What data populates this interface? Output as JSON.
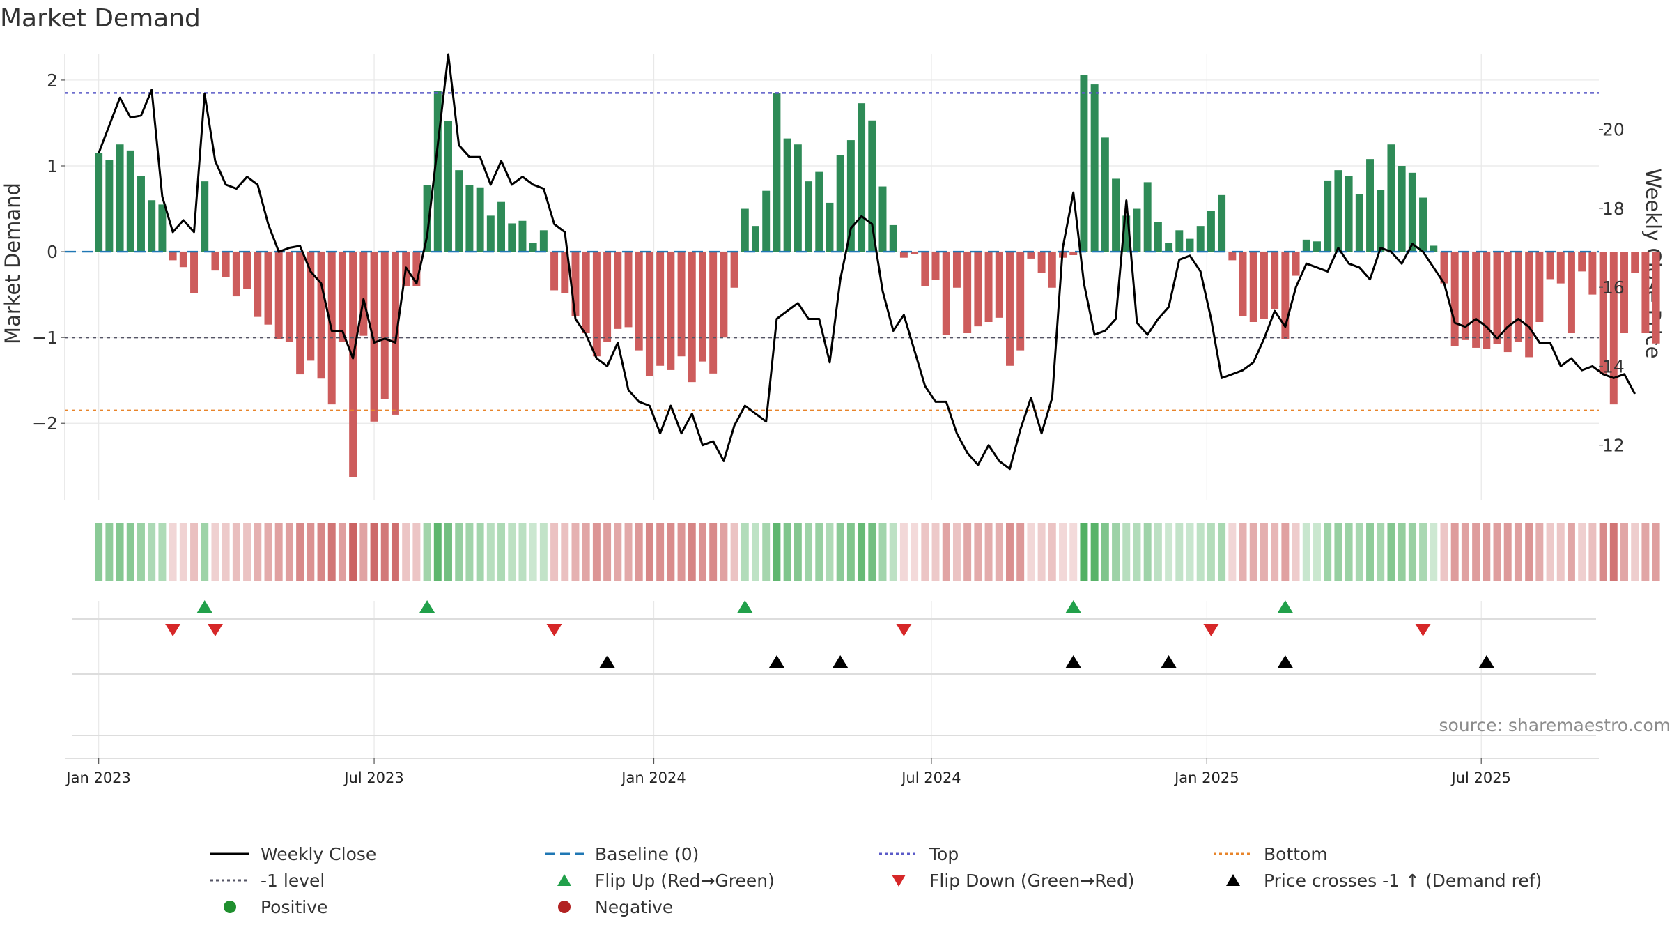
{
  "colors": {
    "positive_bar": "#2e8b57",
    "negative_bar": "#cd5c5c",
    "close_line": "#000000",
    "baseline": "#1f77b4",
    "top": "#5a5ac8",
    "bottom": "#e8842a",
    "minus_one": "#555566",
    "flip_up": "#21a04a",
    "flip_down": "#d62728",
    "cross": "#000000",
    "positive_dot": "#1f8f2e",
    "negative_dot": "#b22222",
    "grid": "#e8e8e8",
    "source": "#8c8c8c"
  },
  "source_text": "source: sharemaestro.com",
  "legend": [
    {
      "label": "Weekly Close",
      "kind": "line-black"
    },
    {
      "label": "Baseline (0)",
      "kind": "dash-blue"
    },
    {
      "label": "Top",
      "kind": "dot-purple"
    },
    {
      "label": "Bottom",
      "kind": "dot-orange"
    },
    {
      "label": "-1 level",
      "kind": "dot-gray"
    },
    {
      "label": "Flip Up (Red→Green)",
      "kind": "tri-up-green"
    },
    {
      "label": "Flip Down (Green→Red)",
      "kind": "tri-down-red"
    },
    {
      "label": "Price crosses -1 ↑ (Demand ref)",
      "kind": "tri-up-black"
    },
    {
      "label": "Positive",
      "kind": "dot-green"
    },
    {
      "label": "Negative",
      "kind": "dot-red"
    }
  ],
  "chart_data": {
    "type": "bar",
    "title": "Market Demand",
    "ylabel": "Market Demand",
    "y2label": "Weekly Close Price",
    "ylim": [
      -2.9,
      2.3
    ],
    "y2lim": [
      10.6,
      21.9
    ],
    "yticks": [
      {
        "value": 2,
        "label": "2"
      },
      {
        "value": 1,
        "label": "1"
      },
      {
        "value": 0,
        "label": "0"
      },
      {
        "value": -1,
        "label": "−1"
      },
      {
        "value": -2,
        "label": "−2"
      }
    ],
    "y2ticks": [
      {
        "value": 20,
        "label": "20"
      },
      {
        "value": 18,
        "label": "18"
      },
      {
        "value": 16,
        "label": "16"
      },
      {
        "value": 14,
        "label": "14"
      },
      {
        "value": 12,
        "label": "12"
      }
    ],
    "xlim": [
      -3.2,
      141.6
    ],
    "xticks": [
      {
        "value": 0,
        "label": "Jan 2023"
      },
      {
        "value": 26,
        "label": "Jul 2023"
      },
      {
        "value": 52.4,
        "label": "Jan 2024"
      },
      {
        "value": 78.6,
        "label": "Jul 2024"
      },
      {
        "value": 104.6,
        "label": "Jan 2025"
      },
      {
        "value": 130.5,
        "label": "Jul 2025"
      }
    ],
    "levels": {
      "top": 1.85,
      "bottom": -1.85,
      "minus_one": -1,
      "baseline": 0
    },
    "demand": [
      1.15,
      1.07,
      1.25,
      1.18,
      0.88,
      0.6,
      0.55,
      -0.1,
      -0.18,
      -0.48,
      0.82,
      -0.22,
      -0.3,
      -0.52,
      -0.43,
      -0.76,
      -0.85,
      -1.02,
      -1.05,
      -1.43,
      -1.27,
      -1.48,
      -1.78,
      -1.05,
      -2.63,
      -0.98,
      -1.98,
      -1.72,
      -1.9,
      -0.4,
      -0.4,
      0.78,
      1.87,
      1.52,
      0.95,
      0.78,
      0.75,
      0.42,
      0.58,
      0.33,
      0.36,
      0.1,
      0.25,
      -0.45,
      -0.48,
      -0.75,
      -0.95,
      -1.22,
      -1.05,
      -0.9,
      -0.88,
      -1.15,
      -1.45,
      -1.33,
      -1.38,
      -1.22,
      -1.52,
      -1.28,
      -1.42,
      -1.0,
      -0.42,
      0.5,
      0.3,
      0.71,
      1.85,
      1.32,
      1.25,
      0.82,
      0.93,
      0.57,
      1.13,
      1.3,
      1.73,
      1.53,
      0.76,
      0.31,
      -0.07,
      -0.03,
      -0.4,
      -0.33,
      -0.97,
      -0.42,
      -0.95,
      -0.87,
      -0.82,
      -0.77,
      -1.33,
      -1.15,
      -0.08,
      -0.25,
      -0.42,
      -0.07,
      -0.04,
      2.06,
      1.95,
      1.33,
      0.85,
      0.42,
      0.5,
      0.81,
      0.35,
      0.1,
      0.25,
      0.15,
      0.3,
      0.48,
      0.66,
      -0.1,
      -0.75,
      -0.82,
      -0.78,
      -0.67,
      -1.02,
      -0.28,
      0.14,
      0.12,
      0.83,
      0.95,
      0.88,
      0.67,
      1.08,
      0.72,
      1.25,
      1.0,
      0.92,
      0.63,
      0.07,
      -0.37,
      -1.1,
      -1.03,
      -1.12,
      -1.13,
      -1.08,
      -1.17,
      -1.05,
      -1.23,
      -0.82,
      -0.32,
      -0.37,
      -0.95,
      -0.23,
      -0.5,
      -1.42,
      -1.78,
      -0.95,
      -0.25,
      -0.95,
      -1.07
    ],
    "close": [
      19.4,
      20.1,
      20.8,
      20.3,
      20.35,
      21.0,
      18.3,
      17.4,
      17.7,
      17.4,
      20.9,
      19.2,
      18.6,
      18.5,
      18.8,
      18.6,
      17.6,
      16.9,
      17.0,
      17.05,
      16.4,
      16.1,
      14.9,
      14.9,
      14.2,
      15.7,
      14.6,
      14.7,
      14.6,
      16.5,
      16.1,
      17.3,
      19.6,
      21.9,
      19.6,
      19.3,
      19.3,
      18.6,
      19.2,
      18.6,
      18.8,
      18.6,
      18.5,
      17.6,
      17.4,
      15.2,
      14.8,
      14.2,
      14.0,
      14.6,
      13.4,
      13.1,
      13.0,
      12.3,
      13.0,
      12.3,
      12.8,
      12.0,
      12.1,
      11.6,
      12.5,
      13.0,
      12.8,
      12.6,
      15.2,
      15.4,
      15.6,
      15.2,
      15.2,
      14.1,
      16.2,
      17.5,
      17.8,
      17.6,
      15.9,
      14.9,
      15.3,
      14.4,
      13.5,
      13.1,
      13.1,
      12.3,
      11.8,
      11.5,
      12.0,
      11.6,
      11.4,
      12.4,
      13.2,
      12.3,
      13.2,
      17.0,
      18.4,
      16.1,
      14.8,
      14.9,
      15.2,
      18.2,
      15.1,
      14.8,
      15.2,
      15.5,
      16.7,
      16.8,
      16.4,
      15.2,
      13.7,
      13.8,
      13.9,
      14.1,
      14.7,
      15.4,
      15.0,
      16.0,
      16.6,
      16.5,
      16.4,
      17.0,
      16.6,
      16.5,
      16.2,
      17.0,
      16.9,
      16.6,
      17.1,
      16.9,
      16.5,
      16.1,
      15.1,
      15.0,
      15.2,
      15.0,
      14.7,
      15.0,
      15.2,
      15.0,
      14.6,
      14.6,
      14.0,
      14.2,
      13.9,
      14.0,
      13.8,
      13.7,
      13.8,
      13.3
    ],
    "flip_up": [
      10,
      31,
      61,
      92,
      112
    ],
    "flip_down": [
      7,
      11,
      43,
      76,
      105,
      125
    ],
    "crosses": [
      48,
      64,
      70,
      92,
      101,
      112,
      131
    ]
  }
}
